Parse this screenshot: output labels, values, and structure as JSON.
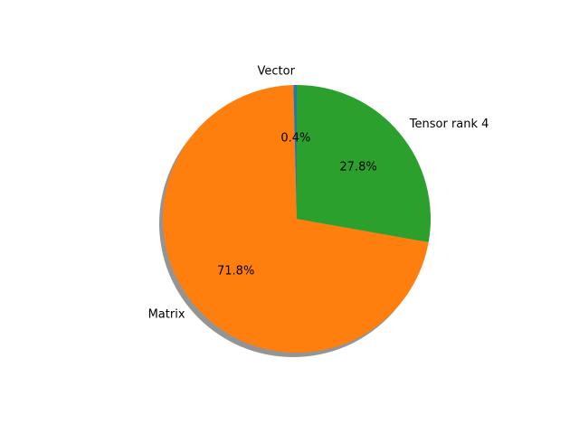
{
  "chart_data": {
    "type": "pie",
    "title": "",
    "labels": [
      "Vector",
      "Matrix",
      "Tensor rank 4"
    ],
    "values": [
      0.4,
      71.8,
      27.8
    ],
    "percent_labels": [
      "0.4%",
      "71.8%",
      "27.8%"
    ],
    "colors": [
      "#1f77b4",
      "#ff7f0e",
      "#2ca02c"
    ],
    "start_angle_deg": 90,
    "direction": "counterclockwise",
    "shadow": true,
    "legend": "none"
  }
}
